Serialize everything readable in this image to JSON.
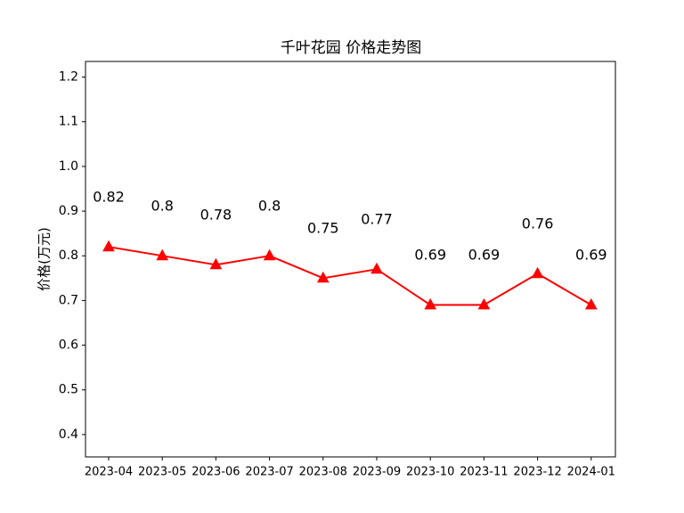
{
  "chart_data": {
    "type": "line",
    "title": "千叶花园 价格走势图",
    "xlabel": "",
    "ylabel": "价格(万元)",
    "categories": [
      "2023-04",
      "2023-05",
      "2023-06",
      "2023-07",
      "2023-08",
      "2023-09",
      "2023-10",
      "2023-11",
      "2023-12",
      "2024-01"
    ],
    "series": [
      {
        "values": [
          0.82,
          0.8,
          0.78,
          0.8,
          0.75,
          0.77,
          0.69,
          0.69,
          0.76,
          0.69
        ],
        "data_labels": [
          "0.82",
          "0.8",
          "0.78",
          "0.8",
          "0.75",
          "0.77",
          "0.69",
          "0.69",
          "0.76",
          "0.69"
        ],
        "color": "#ff0000",
        "marker": "triangle"
      }
    ],
    "ylim": [
      0.35,
      1.235
    ],
    "yticks": [
      0.4,
      0.5,
      0.6,
      0.7,
      0.8,
      0.9,
      1.0,
      1.1,
      1.2
    ],
    "ytick_labels": [
      "0.4",
      "0.5",
      "0.6",
      "0.7",
      "0.8",
      "0.9",
      "1.0",
      "1.1",
      "1.2"
    ],
    "grid": false,
    "legend": "none"
  }
}
